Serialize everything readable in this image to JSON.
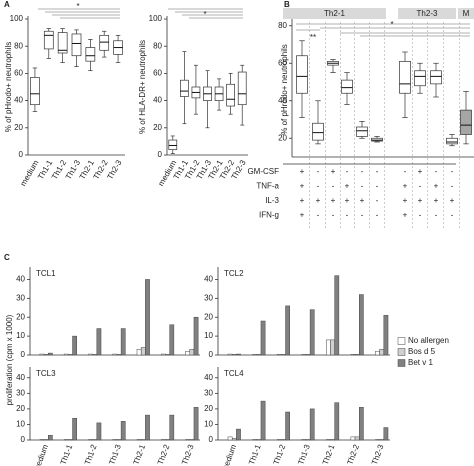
{
  "chart_data": [
    {
      "type": "box",
      "panel": "A",
      "ylabel": "% of pHrodo+ neutrophils",
      "annotation": "*",
      "color": "#ffffff",
      "categories": [
        "medium",
        "Th1-1",
        "Th1-2",
        "Th1-3",
        "Th2-1",
        "Th2-2",
        "Th2-3"
      ],
      "boxes": [
        {
          "min": 32,
          "q1": 37,
          "median": 45,
          "q3": 57,
          "max": 64
        },
        {
          "min": 71,
          "q1": 78,
          "median": 88,
          "q3": 91,
          "max": 93
        },
        {
          "min": 68,
          "q1": 75,
          "median": 77,
          "q3": 90,
          "max": 93
        },
        {
          "min": 65,
          "q1": 73,
          "median": 82,
          "q3": 89,
          "max": 92
        },
        {
          "min": 62,
          "q1": 69,
          "median": 73,
          "q3": 79,
          "max": 85
        },
        {
          "min": 72,
          "q1": 77,
          "median": 83,
          "q3": 88,
          "max": 91
        },
        {
          "min": 68,
          "q1": 74,
          "median": 79,
          "q3": 84,
          "max": 88
        }
      ],
      "ylim": [
        0,
        100
      ],
      "yticks": [
        0,
        20,
        40,
        60,
        80,
        100
      ]
    },
    {
      "type": "box",
      "ylabel": "% of HLA-DR+ neutrophils",
      "annotation": "*",
      "color": "#ffffff",
      "categories": [
        "medium",
        "Th1-1",
        "Th1-2",
        "Th1-3",
        "Th2-1",
        "Th2-2",
        "Th2-3"
      ],
      "boxes": [
        {
          "min": 1,
          "q1": 4,
          "median": 7,
          "q3": 11,
          "max": 14
        },
        {
          "min": 23,
          "q1": 43,
          "median": 47,
          "q3": 55,
          "max": 76
        },
        {
          "min": 30,
          "q1": 42,
          "median": 46,
          "q3": 50,
          "max": 66
        },
        {
          "min": 20,
          "q1": 40,
          "median": 45,
          "q3": 50,
          "max": 62
        },
        {
          "min": 33,
          "q1": 40,
          "median": 45,
          "q3": 50,
          "max": 56
        },
        {
          "min": 30,
          "q1": 36,
          "median": 41,
          "q3": 52,
          "max": 60
        },
        {
          "min": 22,
          "q1": 37,
          "median": 45,
          "q3": 61,
          "max": 66
        }
      ],
      "ylim": [
        0,
        100
      ],
      "yticks": [
        0,
        20,
        40,
        60,
        80,
        100
      ]
    },
    {
      "type": "box",
      "panel": "B",
      "ylabel": "% of pHrodo+ neutrophils",
      "annotations": [
        "**",
        "*"
      ],
      "color": "#ffffff",
      "groups": [
        "Th2-1",
        "Th2-3",
        "M"
      ],
      "boxes": [
        {
          "min": 31,
          "q1": 44,
          "median": 53,
          "q3": 64,
          "max": 72
        },
        {
          "min": 17,
          "q1": 19,
          "median": 23,
          "q3": 28,
          "max": 40
        },
        {
          "min": 55,
          "q1": 59,
          "median": 60,
          "q3": 61,
          "max": 62
        },
        {
          "min": 38,
          "q1": 44,
          "median": 47,
          "q3": 51,
          "max": 55
        },
        {
          "min": 20,
          "q1": 21,
          "median": 24,
          "q3": 26,
          "max": 29
        },
        {
          "min": 18,
          "q1": 18.5,
          "median": 19,
          "q3": 20,
          "max": 21
        },
        {
          "min": 31,
          "q1": 44,
          "median": 49,
          "q3": 61,
          "max": 66
        },
        {
          "min": 44,
          "q1": 48,
          "median": 53,
          "q3": 56,
          "max": 60
        },
        {
          "min": 42,
          "q1": 49,
          "median": 53,
          "q3": 56,
          "max": 60
        },
        {
          "min": 16,
          "q1": 17,
          "median": 18,
          "q3": 20,
          "max": 22
        },
        {
          "min": 17,
          "q1": 22,
          "median": 27,
          "q3": 35,
          "max": 45,
          "color": "#a6a6a6"
        }
      ],
      "ylim": [
        10,
        82
      ],
      "yticks": [
        20,
        40,
        60,
        80
      ],
      "conditions": [
        {
          "label": "GM-CSF",
          "cells": [
            "+",
            "-",
            "+",
            "-",
            "-",
            "-",
            "-",
            "+",
            "-",
            "-"
          ]
        },
        {
          "label": "TNF-a",
          "cells": [
            "+",
            "-",
            "-",
            "+",
            "-",
            "-",
            "+",
            "-",
            "+",
            "-"
          ]
        },
        {
          "label": "IL-3",
          "cells": [
            "+",
            "+",
            "+",
            "+",
            "+",
            "-",
            "+",
            "+",
            "+",
            "+"
          ]
        },
        {
          "label": "IFN-g",
          "cells": [
            "+",
            "-",
            "-",
            "-",
            "-",
            "-",
            "+",
            "-",
            "-",
            "-"
          ]
        }
      ]
    },
    {
      "type": "bar",
      "panel": "C",
      "title": "TCL1",
      "ylabel": "proliferation (cpm x 1000)",
      "categories": [
        null,
        null,
        null,
        null,
        null,
        null,
        null
      ],
      "series": [
        {
          "name": "No allergen",
          "color": "#ffffff",
          "values": [
            0.5,
            0.5,
            0.5,
            0.5,
            3,
            0.5,
            2
          ]
        },
        {
          "name": "Bos d 5",
          "color": "#d0d0d0",
          "values": [
            0.3,
            0.3,
            0.3,
            0.3,
            4,
            0.3,
            3
          ]
        },
        {
          "name": "Bet v 1",
          "color": "#808080",
          "values": [
            1,
            10,
            14,
            14,
            40,
            16,
            20
          ]
        }
      ],
      "ylim": [
        0,
        45
      ],
      "yticks": [
        0,
        10,
        20,
        30,
        40
      ]
    },
    {
      "type": "bar",
      "title": "TCL2",
      "categories": [
        null,
        null,
        null,
        null,
        null,
        null,
        null
      ],
      "series": [
        {
          "color": "#ffffff",
          "values": [
            0.5,
            0.3,
            0.3,
            0.3,
            8,
            0.3,
            2
          ]
        },
        {
          "color": "#d0d0d0",
          "values": [
            0.3,
            0.3,
            0.3,
            0.3,
            8,
            0.3,
            3
          ]
        },
        {
          "color": "#808080",
          "values": [
            0.5,
            18,
            26,
            24,
            42,
            32,
            21
          ]
        }
      ],
      "ylim": [
        0,
        45
      ],
      "yticks": [
        0,
        10,
        20,
        30,
        40
      ]
    },
    {
      "type": "bar",
      "title": "TCL3",
      "categories": [
        "medium",
        "Th1-1",
        "Th1-2",
        "Th1-3",
        "Th2-1",
        "Th2-2",
        "Th2-3"
      ],
      "series": [
        {
          "color": "#ffffff",
          "values": [
            0.3,
            0.3,
            0.3,
            0.3,
            0.3,
            0.3,
            0.3
          ]
        },
        {
          "color": "#d0d0d0",
          "values": [
            0.3,
            0.3,
            0.3,
            0.3,
            0.3,
            0.3,
            0.3
          ]
        },
        {
          "color": "#808080",
          "values": [
            3,
            14,
            11,
            12,
            16,
            16,
            21
          ]
        }
      ],
      "ylim": [
        0,
        45
      ],
      "yticks": [
        0,
        10,
        20,
        30,
        40
      ]
    },
    {
      "type": "bar",
      "title": "TCL4",
      "categories": [
        "medium",
        "Th1-1",
        "Th1-2",
        "Th1-3",
        "Th2-1",
        "Th2-2",
        "Th2-3"
      ],
      "series": [
        {
          "color": "#ffffff",
          "values": [
            2,
            0.3,
            0.3,
            0.3,
            0.3,
            2,
            0.3
          ]
        },
        {
          "color": "#d0d0d0",
          "values": [
            1,
            0.3,
            0.3,
            0.3,
            0.3,
            2,
            0.3
          ]
        },
        {
          "color": "#808080",
          "values": [
            7,
            25,
            18,
            20,
            24,
            21,
            8
          ]
        }
      ],
      "ylim": [
        0,
        45
      ],
      "yticks": [
        0,
        10,
        20,
        30,
        40
      ]
    }
  ]
}
